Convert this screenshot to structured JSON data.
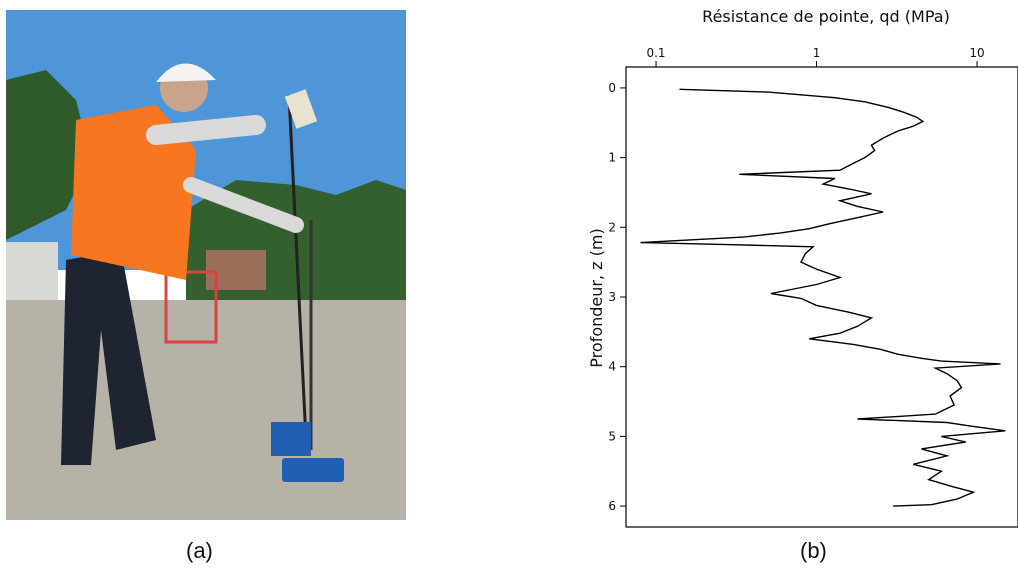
{
  "captions": {
    "a": "(a)",
    "b": "(b)"
  },
  "photo": {
    "subject": "technician operating dynamic penetrometer on gravel site",
    "colors": {
      "sky": "#4f96d8",
      "vest": "#f7761f",
      "helmet": "#f3f3f3",
      "ground": "#b7b2a8",
      "device": "#1f5fb4"
    }
  },
  "chart_data": {
    "type": "line",
    "title": "Résistance de pointe, qd (MPa)",
    "xlabel": "Résistance de pointe, qd (MPa)",
    "ylabel": "Profondeur, z (m)",
    "xscale": "log",
    "xlim": [
      0.065,
      18
    ],
    "ylim": [
      6.3,
      -0.3
    ],
    "xaxis_position": "top",
    "grid": false,
    "x_ticks": [
      0.1,
      1,
      10
    ],
    "x_tick_labels": [
      "0.1",
      "1",
      "10"
    ],
    "y_ticks": [
      0,
      1,
      2,
      3,
      4,
      5,
      6
    ],
    "y_tick_labels": [
      "0",
      "1",
      "2",
      "3",
      "4",
      "5",
      "6"
    ],
    "series": [
      {
        "color": "#000000",
        "points": [
          [
            0.14,
            0.02
          ],
          [
            0.5,
            0.06
          ],
          [
            1.3,
            0.14
          ],
          [
            2.0,
            0.2
          ],
          [
            2.8,
            0.28
          ],
          [
            3.5,
            0.35
          ],
          [
            4.2,
            0.42
          ],
          [
            4.6,
            0.48
          ],
          [
            4.0,
            0.55
          ],
          [
            3.2,
            0.62
          ],
          [
            2.6,
            0.72
          ],
          [
            2.2,
            0.82
          ],
          [
            2.3,
            0.9
          ],
          [
            2.0,
            1.0
          ],
          [
            1.7,
            1.08
          ],
          [
            1.4,
            1.18
          ],
          [
            0.33,
            1.24
          ],
          [
            1.3,
            1.3
          ],
          [
            1.1,
            1.38
          ],
          [
            1.6,
            1.45
          ],
          [
            2.2,
            1.52
          ],
          [
            1.4,
            1.62
          ],
          [
            1.8,
            1.7
          ],
          [
            2.6,
            1.78
          ],
          [
            1.9,
            1.85
          ],
          [
            1.2,
            1.95
          ],
          [
            0.9,
            2.02
          ],
          [
            0.6,
            2.08
          ],
          [
            0.35,
            2.14
          ],
          [
            0.08,
            2.22
          ],
          [
            0.3,
            2.25
          ],
          [
            0.95,
            2.28
          ],
          [
            0.85,
            2.38
          ],
          [
            0.8,
            2.5
          ],
          [
            1.0,
            2.6
          ],
          [
            1.4,
            2.72
          ],
          [
            1.0,
            2.82
          ],
          [
            0.52,
            2.95
          ],
          [
            0.8,
            3.02
          ],
          [
            1.0,
            3.12
          ],
          [
            1.6,
            3.22
          ],
          [
            2.2,
            3.3
          ],
          [
            1.8,
            3.42
          ],
          [
            1.4,
            3.52
          ],
          [
            0.9,
            3.6
          ],
          [
            1.7,
            3.68
          ],
          [
            2.5,
            3.75
          ],
          [
            3.2,
            3.82
          ],
          [
            4.5,
            3.88
          ],
          [
            6.0,
            3.92
          ],
          [
            14.0,
            3.96
          ],
          [
            5.5,
            4.02
          ],
          [
            6.5,
            4.1
          ],
          [
            7.5,
            4.2
          ],
          [
            8.0,
            4.3
          ],
          [
            6.8,
            4.42
          ],
          [
            7.2,
            4.55
          ],
          [
            5.5,
            4.68
          ],
          [
            1.8,
            4.75
          ],
          [
            6.5,
            4.8
          ],
          [
            9.0,
            4.85
          ],
          [
            15.0,
            4.92
          ],
          [
            6.0,
            5.0
          ],
          [
            8.5,
            5.08
          ],
          [
            4.5,
            5.18
          ],
          [
            6.5,
            5.28
          ],
          [
            4.0,
            5.4
          ],
          [
            6.0,
            5.5
          ],
          [
            5.0,
            5.62
          ],
          [
            7.0,
            5.72
          ],
          [
            9.5,
            5.8
          ],
          [
            7.5,
            5.9
          ],
          [
            5.2,
            5.98
          ],
          [
            3.0,
            6.0
          ]
        ]
      }
    ]
  }
}
